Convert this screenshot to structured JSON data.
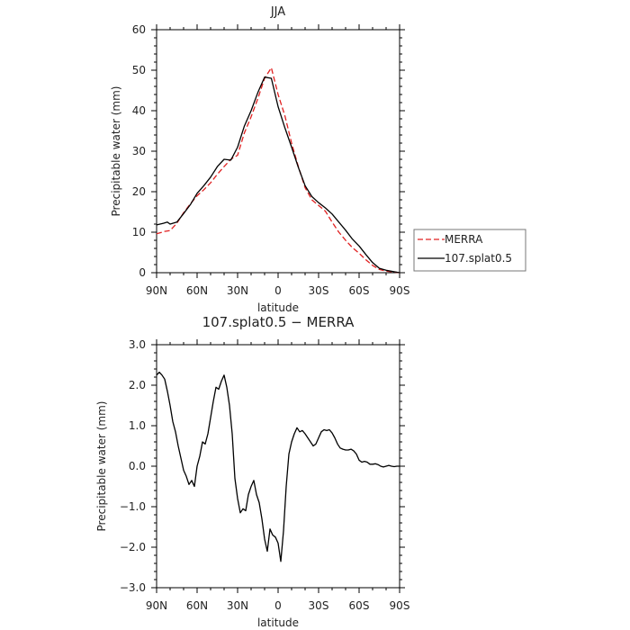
{
  "chart_data": [
    {
      "type": "line",
      "title": "JJA",
      "xlabel": "latitude",
      "ylabel": "Precipitable water (mm)",
      "xlim": [
        90,
        -90
      ],
      "ylim": [
        0,
        60
      ],
      "xticks": [
        {
          "value": 90,
          "label": "90N"
        },
        {
          "value": 60,
          "label": "60N"
        },
        {
          "value": 30,
          "label": "30N"
        },
        {
          "value": 0,
          "label": "0"
        },
        {
          "value": -30,
          "label": "30S"
        },
        {
          "value": -60,
          "label": "60S"
        },
        {
          "value": -90,
          "label": "90S"
        }
      ],
      "yticks": [
        {
          "value": 0,
          "label": "0"
        },
        {
          "value": 10,
          "label": "10"
        },
        {
          "value": 20,
          "label": "20"
        },
        {
          "value": 30,
          "label": "30"
        },
        {
          "value": 40,
          "label": "40"
        },
        {
          "value": 50,
          "label": "50"
        },
        {
          "value": 60,
          "label": "60"
        }
      ],
      "legend_position": "right",
      "series": [
        {
          "name": "MERRA",
          "color": "#e02020",
          "dash": "dashed",
          "x": [
            90,
            84,
            80,
            75,
            70,
            65,
            60,
            55,
            50,
            45,
            40,
            35,
            30,
            25,
            20,
            15,
            10,
            5,
            0,
            -5,
            -10,
            -15,
            -20,
            -25,
            -30,
            -35,
            -40,
            -45,
            -50,
            -55,
            -60,
            -65,
            -70,
            -75,
            -80,
            -85,
            -90
          ],
          "y": [
            9.6,
            10.2,
            10.4,
            12.2,
            14.8,
            17.0,
            19.0,
            20.5,
            22.2,
            24.3,
            26.2,
            28.0,
            29.0,
            34.5,
            38.5,
            43.0,
            48.0,
            50.6,
            44.0,
            38.8,
            32.0,
            26.2,
            21.0,
            18.0,
            16.6,
            15.2,
            12.5,
            10.0,
            8.0,
            6.2,
            4.8,
            3.2,
            1.8,
            0.8,
            0.4,
            0.2,
            0.0
          ]
        },
        {
          "name": "107.splat0.5",
          "color": "#000000",
          "dash": "solid",
          "x": [
            90,
            85,
            82,
            80,
            75,
            70,
            65,
            60,
            55,
            50,
            45,
            40,
            35,
            30,
            25,
            20,
            15,
            10,
            5,
            0,
            -5,
            -10,
            -15,
            -20,
            -25,
            -30,
            -35,
            -40,
            -45,
            -50,
            -55,
            -60,
            -65,
            -70,
            -75,
            -80,
            -85,
            -90
          ],
          "y": [
            11.8,
            12.2,
            12.5,
            12.0,
            12.5,
            14.6,
            16.8,
            19.6,
            21.5,
            23.6,
            26.2,
            28.0,
            27.8,
            31.0,
            36.2,
            40.0,
            44.5,
            48.3,
            48.0,
            41.0,
            35.8,
            31.0,
            26.0,
            21.5,
            18.8,
            17.3,
            16.0,
            14.5,
            12.5,
            10.5,
            8.3,
            6.6,
            4.5,
            2.5,
            1.1,
            0.6,
            0.3,
            0.0
          ]
        }
      ]
    },
    {
      "type": "line",
      "title": "107.splat0.5 − MERRA",
      "xlabel": "latitude",
      "ylabel": "Precipitable water (mm)",
      "xlim": [
        90,
        -90
      ],
      "ylim": [
        -3.0,
        3.0
      ],
      "xticks": [
        {
          "value": 90,
          "label": "90N"
        },
        {
          "value": 60,
          "label": "60N"
        },
        {
          "value": 30,
          "label": "30N"
        },
        {
          "value": 0,
          "label": "0"
        },
        {
          "value": -30,
          "label": "30S"
        },
        {
          "value": -60,
          "label": "60S"
        },
        {
          "value": -90,
          "label": "90S"
        }
      ],
      "yticks": [
        {
          "value": -3.0,
          "label": "−3.0"
        },
        {
          "value": -2.0,
          "label": "−2.0"
        },
        {
          "value": -1.0,
          "label": "−1.0"
        },
        {
          "value": 0.0,
          "label": "0.0"
        },
        {
          "value": 1.0,
          "label": "1.0"
        },
        {
          "value": 2.0,
          "label": "2.0"
        },
        {
          "value": 3.0,
          "label": "3.0"
        }
      ],
      "series": [
        {
          "name": "",
          "color": "#000000",
          "dash": "solid",
          "x": [
            90,
            88,
            86,
            84,
            82,
            80,
            78,
            76,
            74,
            72,
            70,
            68,
            66,
            64,
            62,
            60,
            58,
            56,
            54,
            52,
            50,
            48,
            46,
            44,
            42,
            40,
            38,
            36,
            34,
            32,
            30,
            28,
            26,
            24,
            22,
            20,
            18,
            16,
            14,
            12,
            10,
            8,
            6,
            4,
            2,
            0,
            -2,
            -4,
            -6,
            -8,
            -10,
            -12,
            -14,
            -16,
            -18,
            -20,
            -22,
            -24,
            -26,
            -28,
            -30,
            -32,
            -34,
            -36,
            -38,
            -40,
            -42,
            -44,
            -46,
            -48,
            -50,
            -52,
            -54,
            -56,
            -58,
            -60,
            -62,
            -64,
            -66,
            -68,
            -70,
            -72,
            -74,
            -76,
            -78,
            -80,
            -82,
            -84,
            -86,
            -88,
            -90
          ],
          "y": [
            2.25,
            2.32,
            2.25,
            2.15,
            1.85,
            1.5,
            1.1,
            0.85,
            0.5,
            0.2,
            -0.1,
            -0.25,
            -0.45,
            -0.35,
            -0.5,
            0.0,
            0.25,
            0.6,
            0.55,
            0.8,
            1.2,
            1.6,
            1.95,
            1.9,
            2.1,
            2.25,
            1.95,
            1.5,
            0.8,
            -0.3,
            -0.8,
            -1.15,
            -1.05,
            -1.1,
            -0.7,
            -0.5,
            -0.35,
            -0.7,
            -0.9,
            -1.3,
            -1.8,
            -2.1,
            -1.55,
            -1.7,
            -1.75,
            -1.9,
            -2.35,
            -1.6,
            -0.5,
            0.3,
            0.6,
            0.8,
            0.95,
            0.85,
            0.88,
            0.8,
            0.7,
            0.6,
            0.5,
            0.55,
            0.7,
            0.85,
            0.9,
            0.88,
            0.9,
            0.82,
            0.7,
            0.55,
            0.45,
            0.42,
            0.4,
            0.4,
            0.42,
            0.38,
            0.3,
            0.15,
            0.1,
            0.12,
            0.1,
            0.05,
            0.05,
            0.06,
            0.04,
            0.0,
            -0.02,
            0.0,
            0.02,
            0.0,
            -0.01,
            0.0,
            0.0
          ]
        }
      ]
    }
  ]
}
